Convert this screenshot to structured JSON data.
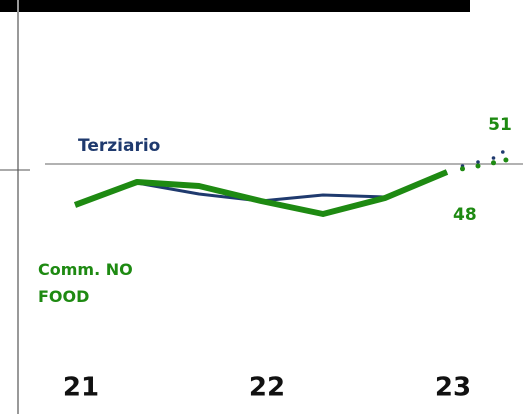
{
  "chart_data": {
    "type": "line",
    "x": [
      0,
      1,
      2,
      3,
      4,
      5,
      6
    ],
    "xlim": [
      0,
      6
    ],
    "xticks": [
      {
        "value": 0,
        "label": "21"
      },
      {
        "value": 3,
        "label": "22"
      },
      {
        "value": 6,
        "label": "23"
      }
    ],
    "ylim": [
      30,
      60
    ],
    "reference_line": 50,
    "series": [
      {
        "name": "Terziario",
        "color": "#1f3a6e",
        "values": [
          null,
          45.25,
          42.5,
          40.75,
          42.25,
          41.75,
          48
        ],
        "forecast_x": [
          6,
          6.25,
          6.5,
          6.75,
          6.9
        ],
        "forecast_values": [
          48,
          49.5,
          50.5,
          51.5,
          53
        ]
      },
      {
        "name": "Comm. NO FOOD",
        "color": "#1e8a12",
        "values": [
          39.75,
          45.5,
          44.5,
          40.75,
          37.5,
          41.5,
          48
        ],
        "forecast_x": [
          6,
          6.25,
          6.5,
          6.75,
          6.95
        ],
        "forecast_values": [
          48,
          48.8,
          49.5,
          50.3,
          51
        ]
      }
    ]
  }
}
